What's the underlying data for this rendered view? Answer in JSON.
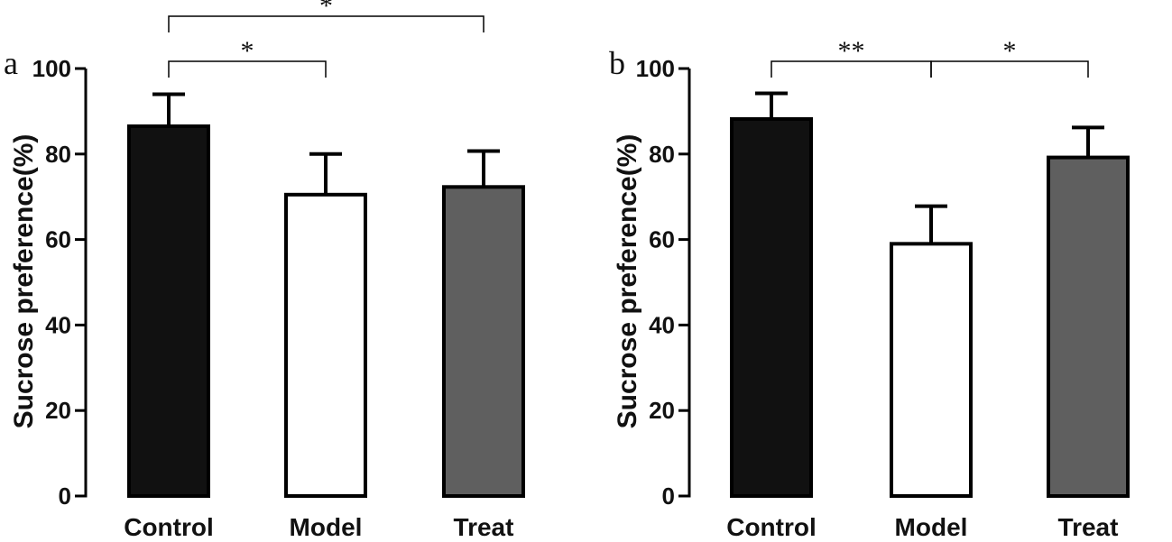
{
  "figure": {
    "colors": {
      "control": "#111111",
      "model": "#ffffff",
      "treat": "#5f5f5f",
      "stroke": "#000000"
    }
  },
  "chart_data": [
    {
      "type": "bar",
      "panel": "a",
      "title": "",
      "xlabel": "",
      "ylabel": "Sucrose preference(%)",
      "ylim": [
        0,
        100
      ],
      "yticks": [
        0,
        20,
        40,
        60,
        80,
        100
      ],
      "categories": [
        "Control",
        "Model",
        "Treat"
      ],
      "values": [
        86.5,
        70.5,
        72.3
      ],
      "errors": [
        7.5,
        9.5,
        8.4
      ],
      "significance": [
        {
          "from": 0,
          "to": 1,
          "label": "*",
          "level": 1
        },
        {
          "from": 0,
          "to": 2,
          "label": "*",
          "level": 2
        }
      ]
    },
    {
      "type": "bar",
      "panel": "b",
      "title": "",
      "xlabel": "",
      "ylabel": "Sucrose preference(%)",
      "ylim": [
        0,
        100
      ],
      "yticks": [
        0,
        20,
        40,
        60,
        80,
        100
      ],
      "categories": [
        "Control",
        "Model",
        "Treat"
      ],
      "values": [
        88.2,
        59.0,
        79.2
      ],
      "errors": [
        6.0,
        8.8,
        7.0
      ],
      "significance": [
        {
          "from": 0,
          "to": 1,
          "label": "**",
          "level": 1
        },
        {
          "from": 1,
          "to": 2,
          "label": "*",
          "level": 1
        }
      ]
    }
  ]
}
